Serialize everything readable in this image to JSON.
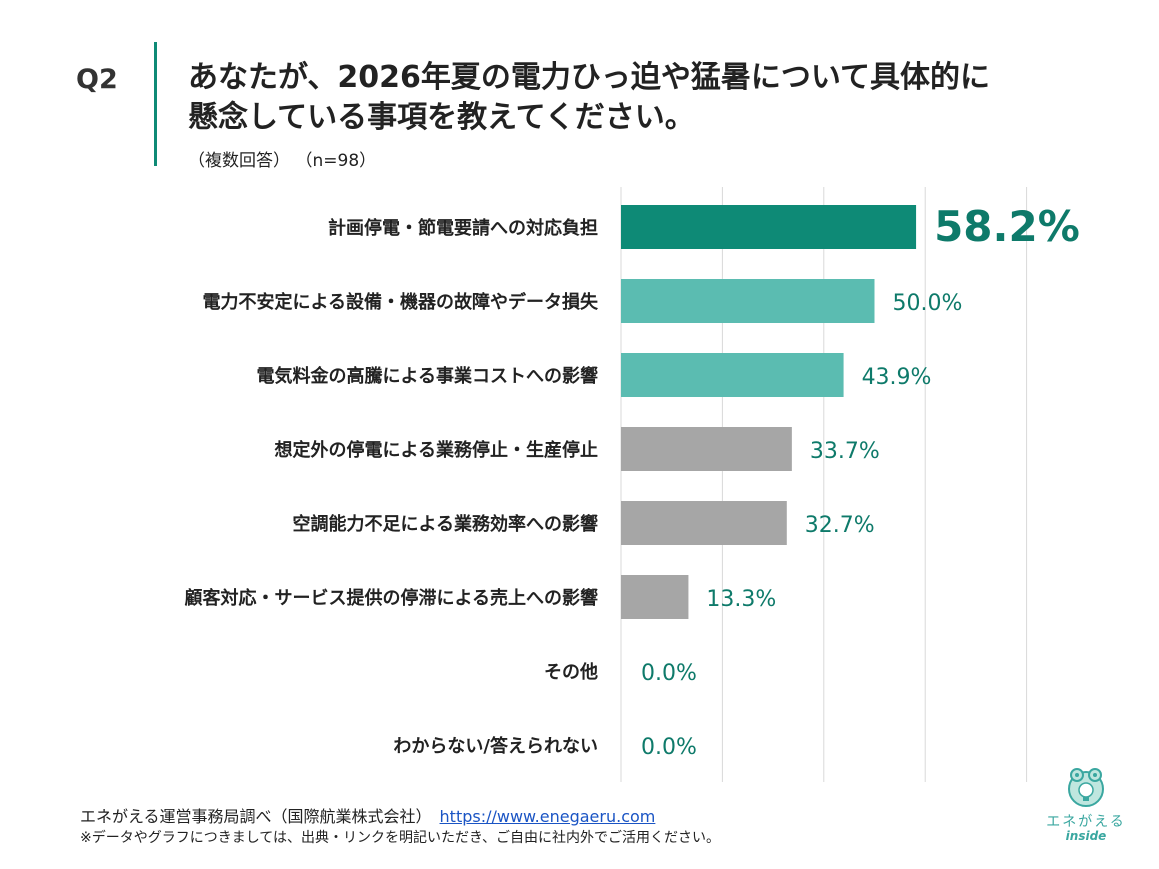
{
  "header": {
    "question": "Q2",
    "title_line1": "あなたが、2026年夏の電力ひっ迫や猛暑について具体的に",
    "title_line2": "懸念している事項を教えてください。",
    "note": "（複数回答）",
    "n": "（n=98）"
  },
  "colors": {
    "accent_dark": "#0e8a76",
    "accent_light": "#5bbcb1",
    "neutral": "#a6a6a6",
    "value_text": "#0e7a6a",
    "gridline": "#d9d9d9"
  },
  "chart_data": {
    "type": "bar",
    "orientation": "horizontal",
    "categories": [
      "計画停電・節電要請への対応負担",
      "電力不安定による設備・機器の故障やデータ損失",
      "電気料金の高騰による事業コストへの影響",
      "想定外の停電による業務停止・生産停止",
      "空調能力不足による業務効率への影響",
      "顧客対応・サービス提供の停滞による売上への影響",
      "その他",
      "わからない/答えられない"
    ],
    "values": [
      58.2,
      50.0,
      43.9,
      33.7,
      32.7,
      13.3,
      0.0,
      0.0
    ],
    "value_labels": [
      "58.2%",
      "50.0%",
      "43.9%",
      "33.7%",
      "32.7%",
      "13.3%",
      "0.0%",
      "0.0%"
    ],
    "bar_colors": [
      "#0e8a76",
      "#5bbcb1",
      "#5bbcb1",
      "#a6a6a6",
      "#a6a6a6",
      "#a6a6a6",
      "#a6a6a6",
      "#a6a6a6"
    ],
    "xlim": [
      0,
      80
    ],
    "grid": true,
    "legend": "none"
  },
  "footer": {
    "source": "エネがえる運営事務局調べ（国際航業株式会社）",
    "url": "https://www.enegaeru.com",
    "note": "※データやグラフにつきましては、出典・リンクを明記いただき、ご自由に社内外でご活用ください。"
  },
  "logo": {
    "brand": "エネがえる",
    "sub": "inside",
    "icon": "frog-lightbulb-icon"
  }
}
